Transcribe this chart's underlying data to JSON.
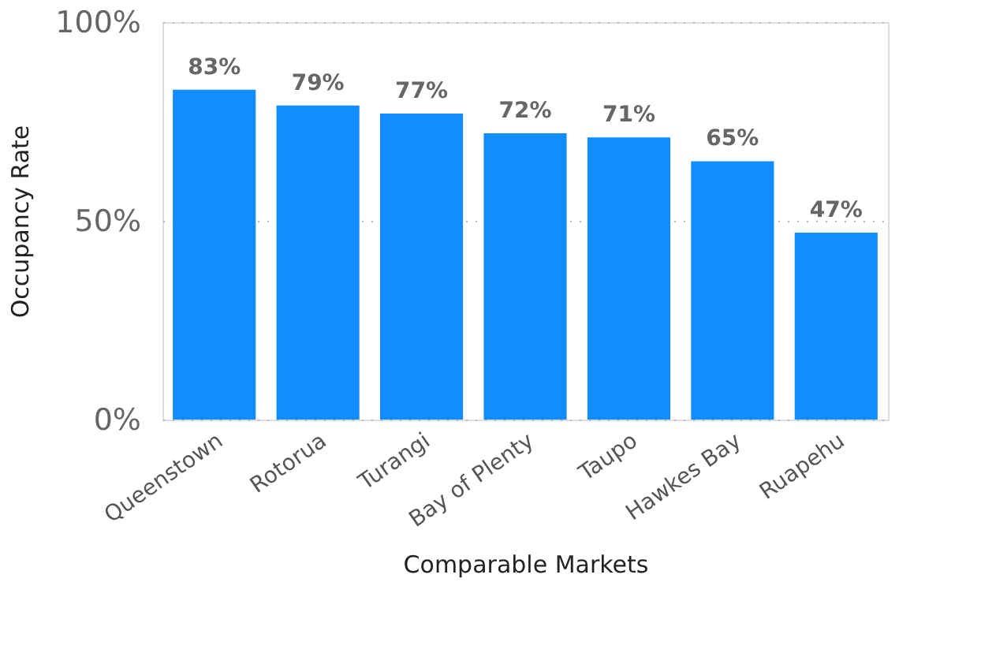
{
  "chart_data": {
    "type": "bar",
    "xlabel": "Comparable Markets",
    "ylabel": "Occupancy Rate",
    "categories": [
      "Queenstown",
      "Rotorua",
      "Turangi",
      "Bay of Plenty",
      "Taupo",
      "Hawkes Bay",
      "Ruapehu"
    ],
    "values": [
      83,
      79,
      77,
      72,
      71,
      65,
      47
    ],
    "value_labels": [
      "83%",
      "79%",
      "77%",
      "72%",
      "71%",
      "65%",
      "47%"
    ],
    "color": "#118dff",
    "ylim": [
      0,
      100
    ],
    "yticks": [
      {
        "value": 0,
        "label": "0%"
      },
      {
        "value": 50,
        "label": "50%"
      },
      {
        "value": 100,
        "label": "100%"
      }
    ],
    "grid": "y"
  }
}
